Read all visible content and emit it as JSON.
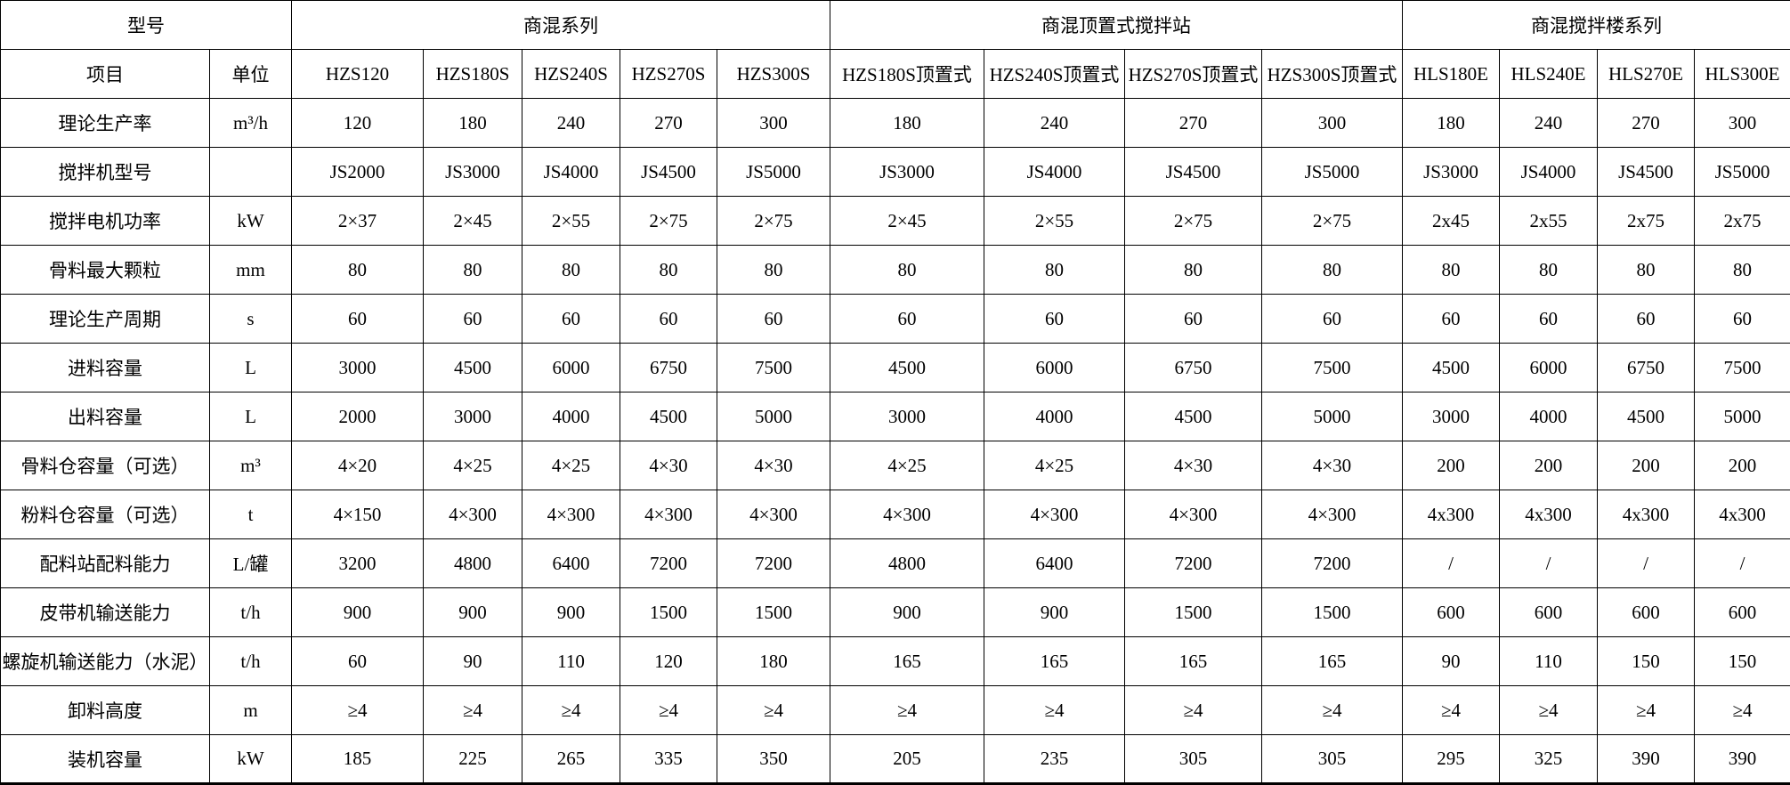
{
  "page": {
    "background_color": "#ffffff"
  },
  "chart_data": {
    "type": "table",
    "border_color": "#000000",
    "text_color": "#000000",
    "background_color": "#ffffff",
    "grid": "on",
    "group_headers": [
      {
        "label": "型号",
        "colspan": 2
      },
      {
        "label": "商混系列",
        "colspan": 5
      },
      {
        "label": "商混顶置式搅拌站",
        "colspan": 4
      },
      {
        "label": "商混搅拌楼系列",
        "colspan": 4
      }
    ],
    "columns": [
      "项目",
      "单位",
      "HZS120",
      "HZS180S",
      "HZS240S",
      "HZS270S",
      "HZS300S",
      "HZS180S顶置式",
      "HZS240S顶置式",
      "HZS270S顶置式",
      "HZS300S顶置式",
      "HLS180E",
      "HLS240E",
      "HLS270E",
      "HLS300E"
    ],
    "rows": [
      {
        "label": "理论生产率",
        "unit": "m³/h",
        "values": [
          "120",
          "180",
          "240",
          "270",
          "300",
          "180",
          "240",
          "270",
          "300",
          "180",
          "240",
          "270",
          "300"
        ]
      },
      {
        "label": "搅拌机型号",
        "unit": "",
        "values": [
          "JS2000",
          "JS3000",
          "JS4000",
          "JS4500",
          "JS5000",
          "JS3000",
          "JS4000",
          "JS4500",
          "JS5000",
          "JS3000",
          "JS4000",
          "JS4500",
          "JS5000"
        ]
      },
      {
        "label": "搅拌电机功率",
        "unit": "kW",
        "values": [
          "2×37",
          "2×45",
          "2×55",
          "2×75",
          "2×75",
          "2×45",
          "2×55",
          "2×75",
          "2×75",
          "2x45",
          "2x55",
          "2x75",
          "2x75"
        ]
      },
      {
        "label": "骨料最大颗粒",
        "unit": "mm",
        "values": [
          "80",
          "80",
          "80",
          "80",
          "80",
          "80",
          "80",
          "80",
          "80",
          "80",
          "80",
          "80",
          "80"
        ]
      },
      {
        "label": "理论生产周期",
        "unit": "s",
        "values": [
          "60",
          "60",
          "60",
          "60",
          "60",
          "60",
          "60",
          "60",
          "60",
          "60",
          "60",
          "60",
          "60"
        ]
      },
      {
        "label": "进料容量",
        "unit": "L",
        "values": [
          "3000",
          "4500",
          "6000",
          "6750",
          "7500",
          "4500",
          "6000",
          "6750",
          "7500",
          "4500",
          "6000",
          "6750",
          "7500"
        ]
      },
      {
        "label": "出料容量",
        "unit": "L",
        "values": [
          "2000",
          "3000",
          "4000",
          "4500",
          "5000",
          "3000",
          "4000",
          "4500",
          "5000",
          "3000",
          "4000",
          "4500",
          "5000"
        ]
      },
      {
        "label": "骨料仓容量（可选）",
        "unit": "m³",
        "values": [
          "4×20",
          "4×25",
          "4×25",
          "4×30",
          "4×30",
          "4×25",
          "4×25",
          "4×30",
          "4×30",
          "200",
          "200",
          "200",
          "200"
        ]
      },
      {
        "label": "粉料仓容量（可选）",
        "unit": "t",
        "values": [
          "4×150",
          "4×300",
          "4×300",
          "4×300",
          "4×300",
          "4×300",
          "4×300",
          "4×300",
          "4×300",
          "4x300",
          "4x300",
          "4x300",
          "4x300"
        ]
      },
      {
        "label": "配料站配料能力",
        "unit": "L/罐",
        "values": [
          "3200",
          "4800",
          "6400",
          "7200",
          "7200",
          "4800",
          "6400",
          "7200",
          "7200",
          "/",
          "/",
          "/",
          "/"
        ]
      },
      {
        "label": "皮带机输送能力",
        "unit": "t/h",
        "values": [
          "900",
          "900",
          "900",
          "1500",
          "1500",
          "900",
          "900",
          "1500",
          "1500",
          "600",
          "600",
          "600",
          "600"
        ]
      },
      {
        "label": "螺旋机输送能力（水泥）",
        "unit": "t/h",
        "values": [
          "60",
          "90",
          "110",
          "120",
          "180",
          "165",
          "165",
          "165",
          "165",
          "90",
          "110",
          "150",
          "150"
        ]
      },
      {
        "label": "卸料高度",
        "unit": "m",
        "values": [
          "≥4",
          "≥4",
          "≥4",
          "≥4",
          "≥4",
          "≥4",
          "≥4",
          "≥4",
          "≥4",
          "≥4",
          "≥4",
          "≥4",
          "≥4"
        ]
      },
      {
        "label": "装机容量",
        "unit": "kW",
        "values": [
          "185",
          "225",
          "265",
          "335",
          "350",
          "205",
          "235",
          "305",
          "305",
          "295",
          "325",
          "390",
          "390"
        ]
      }
    ]
  }
}
